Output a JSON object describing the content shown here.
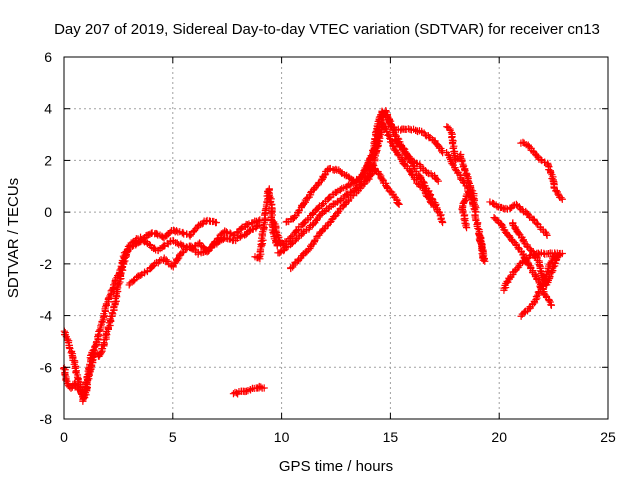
{
  "chart_data": {
    "type": "scatter",
    "title": "Day 207 of 2019, Sidereal Day-to-day VTEC variation (SDTVAR) for receiver cn13",
    "xlabel": "GPS time / hours",
    "ylabel": "SDTVAR / TECUs",
    "xlim": [
      0,
      25
    ],
    "ylim": [
      -8,
      6
    ],
    "xticks": [
      "0",
      "5",
      "10",
      "15",
      "20",
      "25"
    ],
    "yticks": [
      "-8",
      "-6",
      "-4",
      "-2",
      "0",
      "2",
      "4",
      "6"
    ],
    "grid": true,
    "marker": "plus",
    "color": "#ff0000",
    "series": [
      {
        "name": "arc-1",
        "points": [
          [
            0.0,
            -4.6
          ],
          [
            0.2,
            -5.0
          ],
          [
            0.4,
            -5.6
          ],
          [
            0.6,
            -6.3
          ],
          [
            0.8,
            -6.9
          ],
          [
            0.9,
            -7.3
          ],
          [
            1.0,
            -7.0
          ],
          [
            1.1,
            -6.5
          ],
          [
            1.2,
            -6.2
          ],
          [
            1.3,
            -5.9
          ],
          [
            1.4,
            -5.4
          ],
          [
            1.6,
            -5.6
          ],
          [
            1.8,
            -5.2
          ],
          [
            2.0,
            -4.6
          ],
          [
            2.2,
            -4.0
          ],
          [
            2.4,
            -3.3
          ],
          [
            2.5,
            -2.8
          ],
          [
            2.6,
            -2.5
          ],
          [
            2.8,
            -1.8
          ],
          [
            3.0,
            -1.3
          ],
          [
            3.2,
            -1.1
          ],
          [
            3.5,
            -1.0
          ],
          [
            3.8,
            -1.2
          ],
          [
            4.0,
            -1.3
          ],
          [
            4.3,
            -1.5
          ],
          [
            4.6,
            -1.3
          ],
          [
            5.0,
            -1.1
          ],
          [
            5.4,
            -1.3
          ],
          [
            5.8,
            -1.4
          ],
          [
            6.2,
            -1.2
          ],
          [
            6.6,
            -1.5
          ],
          [
            7.0,
            -1.1
          ],
          [
            7.4,
            -0.7
          ],
          [
            7.8,
            -0.9
          ],
          [
            8.2,
            -0.6
          ],
          [
            8.6,
            -0.4
          ],
          [
            9.0,
            -0.3
          ]
        ]
      },
      {
        "name": "arc-2",
        "points": [
          [
            0.0,
            -6.0
          ],
          [
            0.1,
            -6.5
          ],
          [
            0.3,
            -6.8
          ],
          [
            0.5,
            -6.6
          ],
          [
            0.7,
            -6.9
          ],
          [
            0.9,
            -7.1
          ],
          [
            1.0,
            -6.8
          ],
          [
            1.1,
            -6.3
          ],
          [
            1.2,
            -5.8
          ],
          [
            1.3,
            -5.4
          ],
          [
            1.5,
            -5.1
          ],
          [
            1.6,
            -4.7
          ],
          [
            1.8,
            -4.1
          ],
          [
            2.0,
            -3.5
          ],
          [
            2.2,
            -3.0
          ],
          [
            2.4,
            -2.6
          ],
          [
            2.6,
            -2.2
          ],
          [
            2.8,
            -1.6
          ],
          [
            3.0,
            -1.4
          ],
          [
            3.4,
            -1.2
          ],
          [
            3.8,
            -0.9
          ],
          [
            4.2,
            -0.8
          ],
          [
            4.6,
            -1.0
          ],
          [
            5.0,
            -0.7
          ],
          [
            5.4,
            -0.8
          ],
          [
            5.8,
            -0.9
          ],
          [
            6.2,
            -0.5
          ],
          [
            6.6,
            -0.3
          ],
          [
            7.0,
            -0.4
          ]
        ]
      },
      {
        "name": "arc-3",
        "points": [
          [
            3.0,
            -2.8
          ],
          [
            3.4,
            -2.5
          ],
          [
            3.8,
            -2.3
          ],
          [
            4.2,
            -2.0
          ],
          [
            4.6,
            -1.8
          ],
          [
            5.0,
            -2.1
          ],
          [
            5.4,
            -1.6
          ],
          [
            5.8,
            -1.3
          ],
          [
            6.2,
            -1.6
          ],
          [
            6.6,
            -1.5
          ],
          [
            7.0,
            -1.2
          ],
          [
            7.4,
            -1.0
          ],
          [
            7.8,
            -1.1
          ],
          [
            8.2,
            -0.9
          ],
          [
            8.6,
            -0.7
          ],
          [
            9.0,
            -0.5
          ]
        ]
      },
      {
        "name": "arc-4",
        "points": [
          [
            7.8,
            -7.0
          ],
          [
            8.0,
            -7.0
          ],
          [
            8.2,
            -6.9
          ],
          [
            8.4,
            -6.95
          ],
          [
            8.6,
            -6.85
          ],
          [
            8.8,
            -6.8
          ],
          [
            9.0,
            -6.75
          ],
          [
            9.2,
            -6.8
          ]
        ]
      },
      {
        "name": "arc-5",
        "points": [
          [
            8.8,
            -1.7
          ],
          [
            9.0,
            -1.8
          ],
          [
            9.4,
            0.9
          ],
          [
            9.5,
            0.5
          ],
          [
            9.6,
            -0.6
          ],
          [
            9.7,
            -1.1
          ],
          [
            9.8,
            -1.3
          ]
        ]
      },
      {
        "name": "arc-6",
        "points": [
          [
            9.6,
            -0.3
          ],
          [
            10.0,
            -1.3
          ],
          [
            10.4,
            -1.0
          ],
          [
            10.8,
            -0.6
          ],
          [
            11.2,
            -0.3
          ],
          [
            11.6,
            0.1
          ],
          [
            12.0,
            0.4
          ],
          [
            12.4,
            0.7
          ],
          [
            12.8,
            0.9
          ],
          [
            13.2,
            1.1
          ],
          [
            13.6,
            1.3
          ],
          [
            14.0,
            1.9
          ],
          [
            14.3,
            2.5
          ],
          [
            14.5,
            3.2
          ],
          [
            14.7,
            3.8
          ],
          [
            14.8,
            3.9
          ],
          [
            15.0,
            3.4
          ],
          [
            15.2,
            3.0
          ],
          [
            15.5,
            2.6
          ],
          [
            15.8,
            2.2
          ],
          [
            16.1,
            1.7
          ],
          [
            16.4,
            1.3
          ],
          [
            16.7,
            0.9
          ],
          [
            17.0,
            0.4
          ],
          [
            17.3,
            -0.1
          ],
          [
            17.4,
            -0.4
          ]
        ]
      },
      {
        "name": "arc-7",
        "points": [
          [
            9.8,
            -1.6
          ],
          [
            10.2,
            -1.4
          ],
          [
            10.6,
            -1.1
          ],
          [
            11.0,
            -0.8
          ],
          [
            11.4,
            -0.5
          ],
          [
            11.8,
            -0.1
          ],
          [
            12.2,
            0.2
          ],
          [
            12.6,
            0.4
          ],
          [
            13.0,
            0.7
          ],
          [
            13.4,
            0.9
          ],
          [
            13.8,
            1.2
          ],
          [
            14.2,
            1.8
          ],
          [
            14.5,
            2.9
          ],
          [
            14.7,
            3.4
          ],
          [
            15.0,
            2.8
          ],
          [
            15.3,
            2.3
          ],
          [
            15.6,
            1.9
          ],
          [
            15.9,
            1.6
          ],
          [
            16.2,
            1.2
          ],
          [
            16.6,
            0.8
          ],
          [
            17.0,
            0.2
          ]
        ]
      },
      {
        "name": "arc-8",
        "points": [
          [
            10.4,
            -2.2
          ],
          [
            10.8,
            -1.8
          ],
          [
            11.2,
            -1.5
          ],
          [
            11.6,
            -1.0
          ],
          [
            12.0,
            -0.6
          ],
          [
            12.4,
            -0.2
          ],
          [
            12.8,
            0.2
          ],
          [
            13.2,
            0.6
          ],
          [
            13.6,
            0.9
          ],
          [
            14.0,
            1.3
          ],
          [
            14.3,
            1.7
          ],
          [
            14.6,
            1.3
          ],
          [
            14.9,
            0.9
          ],
          [
            15.2,
            0.6
          ],
          [
            15.4,
            0.3
          ]
        ]
      },
      {
        "name": "arc-9",
        "points": [
          [
            10.2,
            -0.4
          ],
          [
            10.6,
            -0.2
          ],
          [
            11.0,
            0.3
          ],
          [
            11.4,
            0.8
          ],
          [
            11.8,
            1.2
          ],
          [
            12.0,
            1.5
          ],
          [
            12.2,
            1.7
          ],
          [
            12.6,
            1.6
          ],
          [
            13.0,
            1.4
          ],
          [
            13.4,
            1.2
          ],
          [
            13.8,
            1.5
          ],
          [
            14.2,
            2.3
          ],
          [
            14.4,
            3.3
          ],
          [
            14.6,
            3.9
          ],
          [
            14.9,
            3.6
          ],
          [
            15.2,
            3.2
          ],
          [
            15.6,
            3.2
          ],
          [
            16.0,
            3.2
          ],
          [
            16.4,
            3.1
          ],
          [
            16.8,
            2.9
          ],
          [
            17.2,
            2.6
          ],
          [
            17.4,
            2.3
          ]
        ]
      },
      {
        "name": "arc-10",
        "points": [
          [
            15.2,
            2.8
          ],
          [
            15.5,
            2.5
          ],
          [
            15.8,
            2.1
          ],
          [
            16.2,
            1.9
          ],
          [
            16.6,
            1.6
          ],
          [
            17.0,
            1.4
          ],
          [
            17.2,
            1.2
          ]
        ]
      },
      {
        "name": "arc-11",
        "points": [
          [
            17.6,
            3.3
          ],
          [
            17.8,
            3.1
          ],
          [
            17.9,
            2.5
          ],
          [
            18.0,
            2.0
          ],
          [
            18.2,
            2.2
          ],
          [
            18.4,
            1.7
          ],
          [
            18.6,
            1.2
          ],
          [
            18.8,
            0.7
          ],
          [
            18.9,
            0.2
          ],
          [
            18.6,
            0.8
          ],
          [
            18.3,
            0.2
          ],
          [
            18.5,
            -0.6
          ]
        ]
      },
      {
        "name": "arc-12",
        "points": [
          [
            17.6,
            2.3
          ],
          [
            17.9,
            1.8
          ],
          [
            18.2,
            1.4
          ],
          [
            18.5,
            1.0
          ],
          [
            18.8,
            0.4
          ],
          [
            19.0,
            -0.5
          ],
          [
            19.2,
            -1.2
          ],
          [
            19.3,
            -1.9
          ],
          [
            19.1,
            -0.9
          ]
        ]
      },
      {
        "name": "arc-13",
        "points": [
          [
            19.6,
            0.4
          ],
          [
            20.0,
            0.2
          ],
          [
            20.4,
            0.1
          ],
          [
            20.8,
            0.3
          ],
          [
            21.2,
            0.0
          ],
          [
            21.6,
            -0.3
          ],
          [
            22.0,
            -0.7
          ],
          [
            22.2,
            -0.9
          ]
        ]
      },
      {
        "name": "arc-14",
        "points": [
          [
            19.8,
            -0.2
          ],
          [
            20.2,
            -0.6
          ],
          [
            20.6,
            -1.1
          ],
          [
            21.0,
            -1.5
          ],
          [
            21.4,
            -2.1
          ],
          [
            21.7,
            -2.5
          ],
          [
            22.0,
            -3.0
          ],
          [
            22.2,
            -3.3
          ],
          [
            22.4,
            -3.6
          ]
        ]
      },
      {
        "name": "arc-15",
        "points": [
          [
            20.6,
            -0.4
          ],
          [
            20.9,
            -0.8
          ],
          [
            21.2,
            -1.2
          ],
          [
            21.5,
            -1.5
          ],
          [
            21.8,
            -1.9
          ],
          [
            22.0,
            -2.5
          ],
          [
            22.2,
            -2.8
          ],
          [
            22.4,
            -2.3
          ],
          [
            22.6,
            -1.9
          ],
          [
            22.8,
            -1.6
          ]
        ]
      },
      {
        "name": "arc-16",
        "points": [
          [
            20.2,
            -3.0
          ],
          [
            20.5,
            -2.5
          ],
          [
            20.8,
            -2.2
          ],
          [
            21.1,
            -1.9
          ],
          [
            21.4,
            -1.7
          ],
          [
            21.8,
            -1.6
          ],
          [
            22.2,
            -1.6
          ],
          [
            22.6,
            -1.6
          ],
          [
            22.9,
            -1.6
          ]
        ]
      },
      {
        "name": "arc-17",
        "points": [
          [
            21.0,
            -4.0
          ],
          [
            21.3,
            -3.8
          ],
          [
            21.6,
            -3.5
          ],
          [
            21.9,
            -3.0
          ],
          [
            22.1,
            -2.6
          ],
          [
            22.3,
            -2.1
          ],
          [
            22.5,
            -1.7
          ]
        ]
      },
      {
        "name": "arc-18",
        "points": [
          [
            21.0,
            2.7
          ],
          [
            21.3,
            2.6
          ],
          [
            21.6,
            2.3
          ],
          [
            21.9,
            2.0
          ],
          [
            22.2,
            1.9
          ],
          [
            22.4,
            1.5
          ],
          [
            22.6,
            0.8
          ],
          [
            22.8,
            0.6
          ],
          [
            22.9,
            0.5
          ]
        ]
      }
    ]
  }
}
